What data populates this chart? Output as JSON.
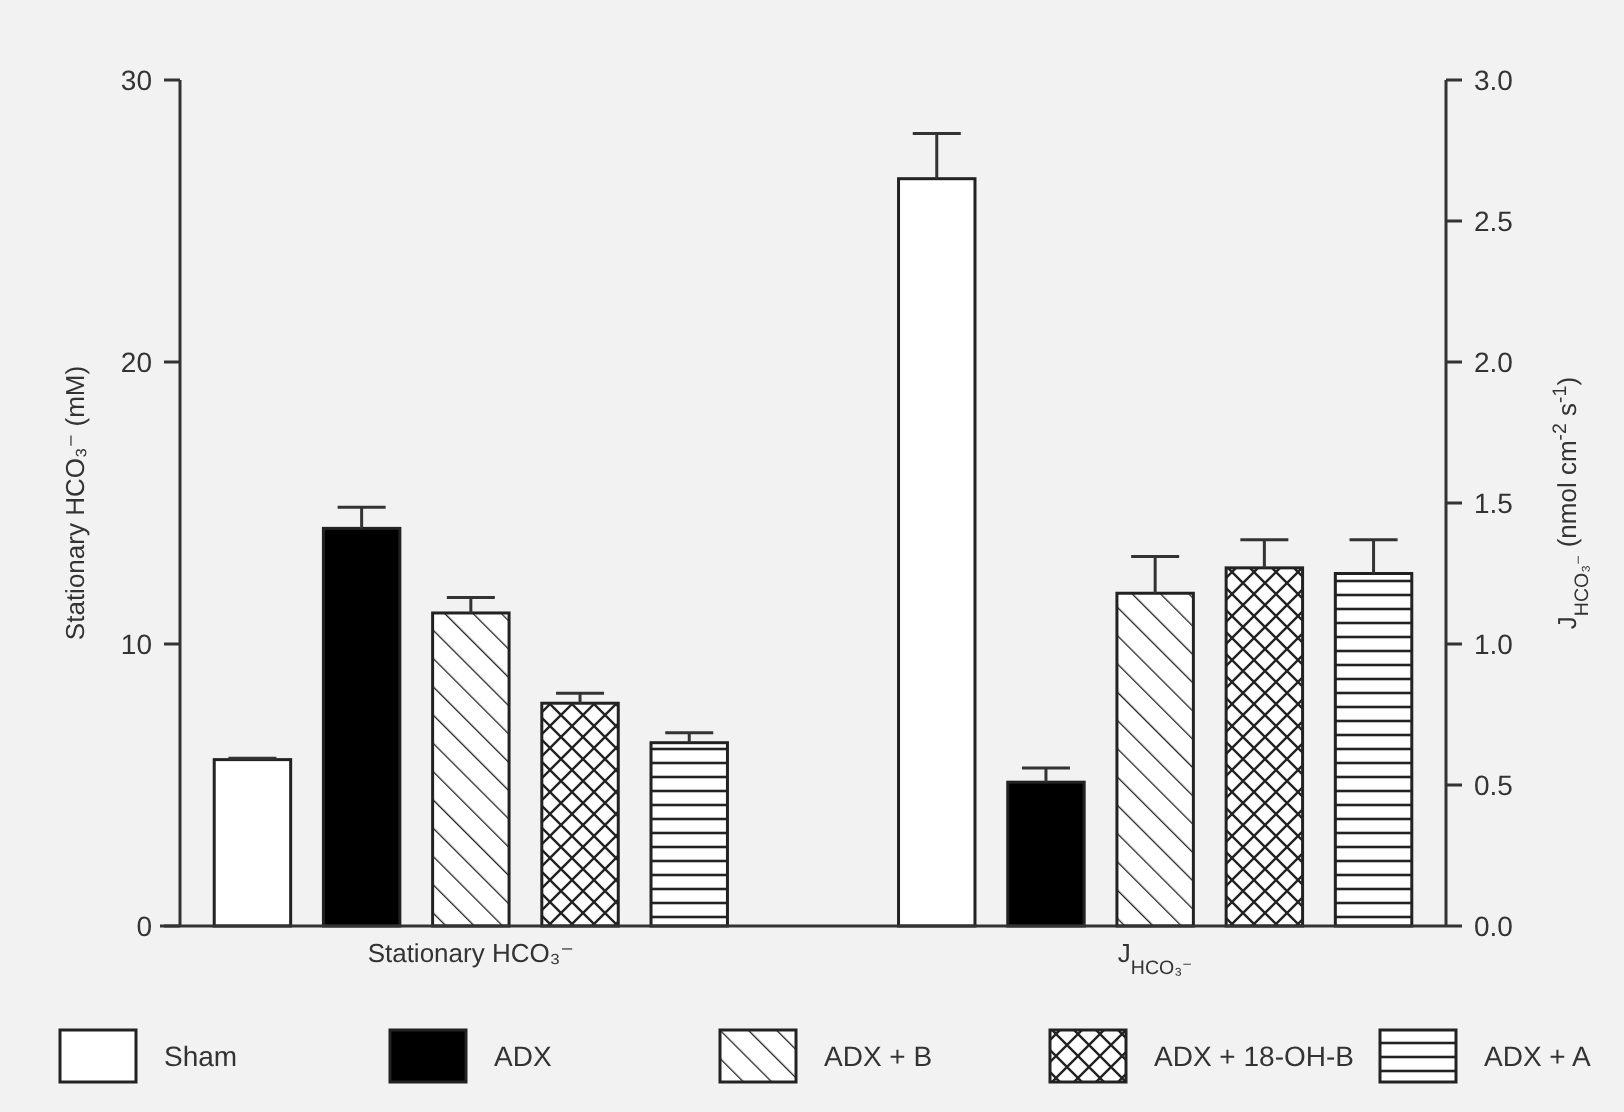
{
  "chart_data": {
    "type": "bar",
    "categories": [
      "Stationary HCO₃⁻",
      "J$_{HCO₃⁻}$"
    ],
    "ylabel": "Stationary HCO₃⁻ (mM)",
    "y2label": "J$_{HCO₃⁻}$ (nmol cm$^{-2}$ s$^{-1}$)",
    "ylim": [
      0,
      30
    ],
    "yticks": [
      0,
      10,
      20,
      30
    ],
    "y2lim": [
      0,
      3
    ],
    "y2ticks": [
      {
        "value": 0,
        "label": "0.0"
      },
      {
        "value": 0.5,
        "label": "0.5"
      },
      {
        "value": 1,
        "label": "1.0"
      },
      {
        "value": 1.5,
        "label": "1.5"
      },
      {
        "value": 2,
        "label": "2.0"
      },
      {
        "value": 2.5,
        "label": "2.5"
      },
      {
        "value": 3,
        "label": "3.0"
      }
    ],
    "legend": "bottom",
    "series": [
      {
        "name": "Sham",
        "color": "#ffffff",
        "values": [
          5.9,
          null
        ],
        "errors": [
          0.05,
          null
        ]
      },
      {
        "name": "ADX",
        "color": "#000000",
        "values": [
          14.1,
          null
        ],
        "errors": [
          0.75,
          null
        ]
      },
      {
        "name": "ADX + B",
        "color": "#222222",
        "values": [
          11.1,
          null
        ],
        "errors": [
          0.55,
          null
        ]
      },
      {
        "name": "ADX + 18-OH-B",
        "color": "#222222",
        "values": [
          7.9,
          null
        ],
        "errors": [
          0.35,
          null
        ]
      },
      {
        "name": "ADX + A",
        "color": "#222222",
        "values": [
          6.5,
          null
        ],
        "errors": [
          0.35,
          null
        ]
      },
      {
        "color": "#ffffff",
        "axis": "y2",
        "values": [
          null,
          2.65
        ],
        "errors": [
          null,
          0.16
        ]
      },
      {
        "color": "#000000",
        "axis": "y2",
        "values": [
          null,
          0.51
        ],
        "errors": [
          null,
          0.05
        ]
      },
      {
        "color": "#222222",
        "axis": "y2",
        "values": [
          null,
          1.18
        ],
        "errors": [
          null,
          0.13
        ]
      },
      {
        "color": "#222222",
        "axis": "y2",
        "values": [
          null,
          1.27
        ],
        "errors": [
          null,
          0.1
        ]
      },
      {
        "color": "#222222",
        "axis": "y2",
        "values": [
          null,
          1.25
        ],
        "errors": [
          null,
          0.12
        ]
      }
    ]
  }
}
